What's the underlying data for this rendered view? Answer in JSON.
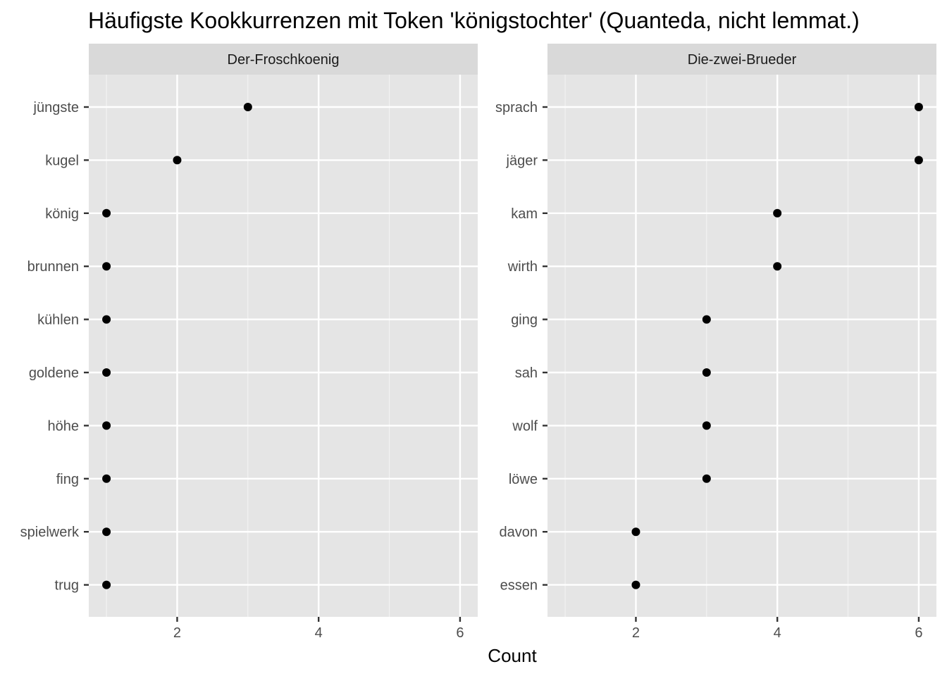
{
  "chart_data": {
    "type": "scatter",
    "title": "Häufigste Kookkurrenzen mit Token 'königstochter' (Quanteda, nicht lemmat.)",
    "xlabel": "Count",
    "ylabel": "",
    "xlim": [
      0.75,
      6.25
    ],
    "x_ticks": [
      2,
      4,
      6
    ],
    "x_tick_labels": [
      "2",
      "4",
      "6"
    ],
    "grid": true,
    "facets": [
      {
        "name": "Der-Froschkoenig",
        "categories": [
          "jüngste",
          "kugel",
          "könig",
          "brunnen",
          "kühlen",
          "goldene",
          "höhe",
          "fing",
          "spielwerk",
          "trug"
        ],
        "values": [
          3,
          2,
          1,
          1,
          1,
          1,
          1,
          1,
          1,
          1
        ]
      },
      {
        "name": "Die-zwei-Brueder",
        "categories": [
          "sprach",
          "jäger",
          "kam",
          "wirth",
          "ging",
          "sah",
          "wolf",
          "löwe",
          "davon",
          "essen"
        ],
        "values": [
          6,
          6,
          4,
          4,
          3,
          3,
          3,
          3,
          2,
          2
        ]
      }
    ]
  }
}
